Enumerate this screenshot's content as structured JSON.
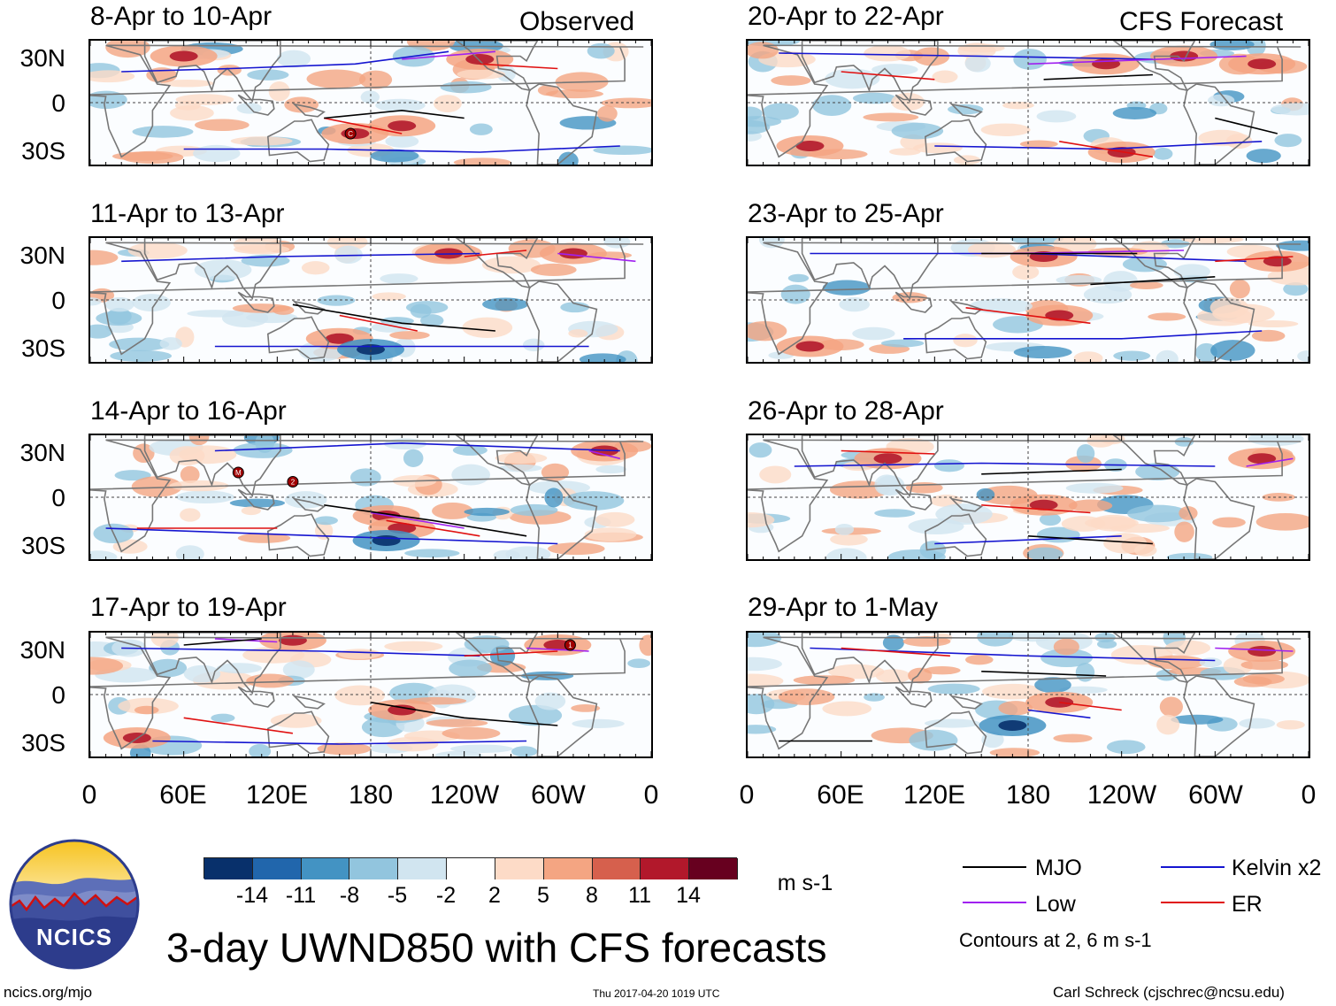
{
  "headers": {
    "observed": "Observed",
    "forecast": "CFS Forecast"
  },
  "panels": [
    {
      "title": "8-Apr to 10-Apr"
    },
    {
      "title": "11-Apr to 13-Apr"
    },
    {
      "title": "14-Apr to 16-Apr"
    },
    {
      "title": "17-Apr to 19-Apr"
    },
    {
      "title": "20-Apr to 22-Apr"
    },
    {
      "title": "23-Apr to 25-Apr"
    },
    {
      "title": "26-Apr to 28-Apr"
    },
    {
      "title": "29-Apr to 1-May"
    }
  ],
  "lat_labels": [
    "30N",
    "0",
    "30S"
  ],
  "lon_labels": [
    "0",
    "60E",
    "120E",
    "180",
    "120W",
    "60W",
    "0"
  ],
  "colorbar": {
    "labels": [
      "-14",
      "-11",
      "-8",
      "-5",
      "-2",
      "2",
      "5",
      "8",
      "11",
      "14"
    ],
    "units": "m s-1",
    "colors": [
      "#08306b",
      "#2166ac",
      "#4393c3",
      "#92c5de",
      "#d1e5f0",
      "#ffffff",
      "#fddbc7",
      "#f4a582",
      "#d6604d",
      "#b2182b",
      "#67001f"
    ]
  },
  "legend": {
    "items": [
      {
        "label": "MJO",
        "color": "#000000"
      },
      {
        "label": "Kelvin x2",
        "color": "#1515d0"
      },
      {
        "label": "Low",
        "color": "#a020f0"
      },
      {
        "label": "ER",
        "color": "#e01010"
      }
    ],
    "note": "Contours at 2, 6 m s-1"
  },
  "logo": {
    "text": "NCICS"
  },
  "title": "3-day UWND850 with CFS forecasts",
  "footer": {
    "url": "ncics.org/mjo",
    "timestamp": "Thu 2017-04-20 1019 UTC",
    "author": "Carl Schreck (cjschrec@ncsu.edu)"
  },
  "storm_markers": [
    {
      "panel": 0,
      "label": "C",
      "lon": 167,
      "lat": -20
    },
    {
      "panel": 2,
      "label": "M",
      "lon": 95,
      "lat": 16
    },
    {
      "panel": 2,
      "label": "2",
      "lon": 130,
      "lat": 10
    },
    {
      "panel": 3,
      "label": "1",
      "lon": 308,
      "lat": 32
    }
  ]
}
